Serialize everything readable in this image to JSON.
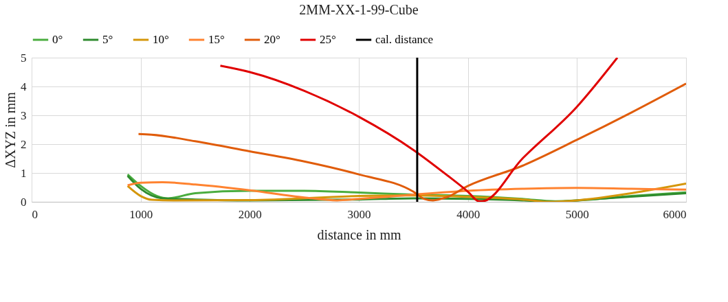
{
  "chart_data": {
    "type": "line",
    "title": "2MM-XX-1-99-Cube",
    "xlabel": "distance in mm",
    "ylabel": "ΔXYZ in mm",
    "xlim": [
      0,
      6000
    ],
    "xticks": [
      0,
      1000,
      2000,
      3000,
      4000,
      5000,
      6000
    ],
    "ylim": [
      0,
      5
    ],
    "yticks": [
      0,
      1,
      2,
      3,
      4,
      5
    ],
    "grid": true,
    "legend": "top",
    "marker": "none",
    "line_style": "solid",
    "series": [
      {
        "name": "0°",
        "color": "#4aad3f",
        "x": [
          880,
          1000,
          1150,
          1250,
          1500,
          2000,
          2500,
          3000,
          3500,
          4000,
          4500,
          4800,
          5000,
          5500,
          6000
        ],
        "values": [
          0.95,
          0.55,
          0.2,
          0.12,
          0.3,
          0.38,
          0.38,
          0.32,
          0.25,
          0.2,
          0.1,
          0.02,
          0.05,
          0.2,
          0.33
        ]
      },
      {
        "name": "5°",
        "color": "#2e8b2e",
        "x": [
          880,
          1000,
          1200,
          1500,
          2000,
          3000,
          3500,
          4000,
          4500,
          4800,
          5000,
          5500,
          6000
        ],
        "values": [
          0.9,
          0.45,
          0.12,
          0.08,
          0.05,
          0.08,
          0.12,
          0.1,
          0.05,
          0.0,
          0.05,
          0.18,
          0.3
        ]
      },
      {
        "name": "10°",
        "color": "#d4960a",
        "x": [
          880,
          1000,
          1100,
          1300,
          2000,
          3000,
          3500,
          4000,
          4500,
          4750,
          5000,
          5500,
          6000
        ],
        "values": [
          0.55,
          0.2,
          0.07,
          0.05,
          0.06,
          0.2,
          0.22,
          0.17,
          0.08,
          0.0,
          0.05,
          0.3,
          0.63
        ]
      },
      {
        "name": "15°",
        "color": "#ff8330",
        "x": [
          880,
          1000,
          1200,
          1500,
          2000,
          2500,
          2800,
          3000,
          3500,
          4000,
          4500,
          5000,
          5500,
          6000
        ],
        "values": [
          0.57,
          0.66,
          0.68,
          0.6,
          0.4,
          0.15,
          0.05,
          0.1,
          0.25,
          0.38,
          0.45,
          0.48,
          0.45,
          0.42
        ]
      },
      {
        "name": "20°",
        "color": "#e05c0a",
        "x": [
          980,
          1100,
          1500,
          2000,
          2500,
          3000,
          3500,
          3600,
          3680,
          3800,
          4000,
          4500,
          5000,
          5500,
          6000
        ],
        "values": [
          2.35,
          2.33,
          2.1,
          1.75,
          1.4,
          0.95,
          0.35,
          0.1,
          0.05,
          0.15,
          0.55,
          1.25,
          2.15,
          3.1,
          4.1
        ]
      },
      {
        "name": "25°",
        "color": "#e00000",
        "x": [
          1730,
          2000,
          2500,
          3000,
          3500,
          3800,
          4000,
          4100,
          4130,
          4500,
          5000,
          5370
        ],
        "values": [
          4.72,
          4.5,
          3.85,
          2.95,
          1.8,
          0.95,
          0.35,
          0.02,
          0.02,
          1.5,
          3.3,
          5.0
        ]
      },
      {
        "name": "cal. distance",
        "color": "#000000",
        "x": [
          3535,
          3535
        ],
        "values": [
          0,
          5
        ]
      }
    ]
  }
}
